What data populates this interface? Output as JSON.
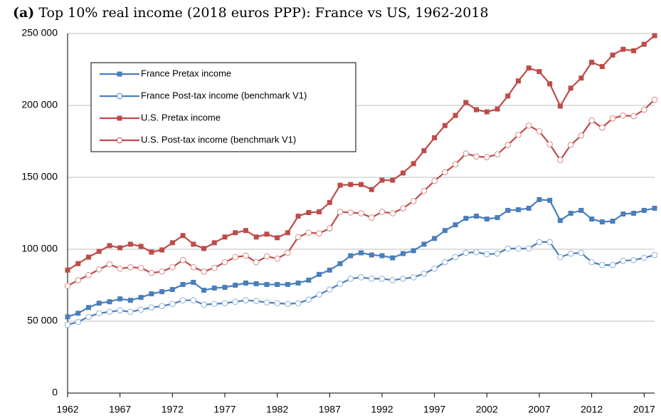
{
  "chart_data": {
    "type": "line",
    "title_prefix": "(a)",
    "title": "Top 10% real income (2018 euros PPP): France vs US, 1962-2018",
    "x": [
      1962,
      1963,
      1964,
      1965,
      1966,
      1967,
      1968,
      1969,
      1970,
      1971,
      1972,
      1973,
      1974,
      1975,
      1976,
      1977,
      1978,
      1979,
      1980,
      1981,
      1982,
      1983,
      1984,
      1985,
      1986,
      1987,
      1988,
      1989,
      1990,
      1991,
      1992,
      1993,
      1994,
      1995,
      1996,
      1997,
      1998,
      1999,
      2000,
      2001,
      2002,
      2003,
      2004,
      2005,
      2006,
      2007,
      2008,
      2009,
      2010,
      2011,
      2012,
      2013,
      2014,
      2015,
      2016,
      2017,
      2018
    ],
    "xlim": [
      1962,
      2018
    ],
    "xticks": [
      1962,
      1967,
      1972,
      1977,
      1982,
      1987,
      1992,
      1997,
      2002,
      2007,
      2012,
      2017
    ],
    "ylim": [
      0,
      250000
    ],
    "yticks": [
      0,
      {
        "value": 50000,
        "label": "50 000"
      },
      {
        "value": 100000,
        "label": "100 000"
      },
      {
        "value": 150000,
        "label": "150 000"
      },
      {
        "value": 200000,
        "label": "200 000"
      },
      {
        "value": 250000,
        "label": "250 000"
      }
    ],
    "grid": true,
    "legend": "upper left",
    "series": [
      {
        "name": "France Pretax income",
        "color": "#4a7ebb",
        "marker": "square",
        "values": [
          53000,
          55500,
          59500,
          62500,
          63500,
          65500,
          64500,
          66500,
          69000,
          70500,
          72000,
          75500,
          77000,
          71500,
          73000,
          73500,
          75000,
          76500,
          76000,
          75500,
          75500,
          75500,
          76500,
          78500,
          82500,
          85500,
          90000,
          95500,
          97500,
          96000,
          95500,
          94000,
          97000,
          99000,
          103500,
          107500,
          113000,
          117000,
          121500,
          123000,
          121000,
          122000,
          127000,
          127500,
          128500,
          134500,
          134000,
          120000,
          125000,
          127000,
          121000,
          119000,
          119500,
          124500,
          125000,
          127000,
          128500
        ]
      },
      {
        "name": "France Post-tax income (benchmark V1)",
        "color": "#4a7ebb",
        "marker": "circle",
        "values": [
          47500,
          49500,
          53000,
          55500,
          56500,
          57500,
          56500,
          58000,
          59500,
          60500,
          62000,
          64500,
          64500,
          61500,
          62000,
          62500,
          63500,
          64500,
          64000,
          63000,
          62500,
          62000,
          62500,
          65000,
          68500,
          72000,
          76000,
          79500,
          80500,
          79500,
          79500,
          78500,
          79500,
          80500,
          83000,
          86500,
          91000,
          94500,
          97500,
          98000,
          96500,
          97000,
          100500,
          100500,
          100500,
          105000,
          105000,
          94500,
          97000,
          97500,
          91000,
          89000,
          89000,
          92000,
          92500,
          94000,
          96000
        ]
      },
      {
        "name": "U.S. Pretax income",
        "color": "#be4b48",
        "marker": "square",
        "values": [
          85500,
          90000,
          94500,
          98500,
          102500,
          101000,
          103500,
          102000,
          98000,
          99500,
          104500,
          109500,
          103500,
          100500,
          104500,
          108500,
          111500,
          113000,
          108500,
          110500,
          108000,
          111500,
          123000,
          125500,
          126000,
          132500,
          144500,
          145000,
          145000,
          141500,
          148000,
          148000,
          153000,
          159500,
          168500,
          177500,
          186000,
          193000,
          202000,
          197000,
          195500,
          197500,
          206500,
          217000,
          226000,
          223500,
          215000,
          199500,
          212000,
          219000,
          230000,
          227000,
          235000,
          239000,
          238000,
          242500,
          248500
        ]
      },
      {
        "name": "U.S. Post-tax income (benchmark V1)",
        "color": "#be4b48",
        "marker": "circle",
        "values": [
          74500,
          78500,
          82000,
          86000,
          89500,
          86500,
          87500,
          87000,
          83500,
          84500,
          87500,
          92500,
          87500,
          84500,
          87000,
          91000,
          94500,
          95500,
          91000,
          95000,
          93500,
          97500,
          108500,
          111500,
          111000,
          114500,
          126000,
          125500,
          125000,
          122000,
          126000,
          125000,
          128500,
          133500,
          140500,
          147500,
          153500,
          159000,
          166500,
          164500,
          164000,
          166000,
          172500,
          179500,
          186000,
          182000,
          173000,
          162000,
          172500,
          179000,
          189500,
          184500,
          191000,
          193000,
          192500,
          197000,
          204000
        ]
      }
    ]
  }
}
